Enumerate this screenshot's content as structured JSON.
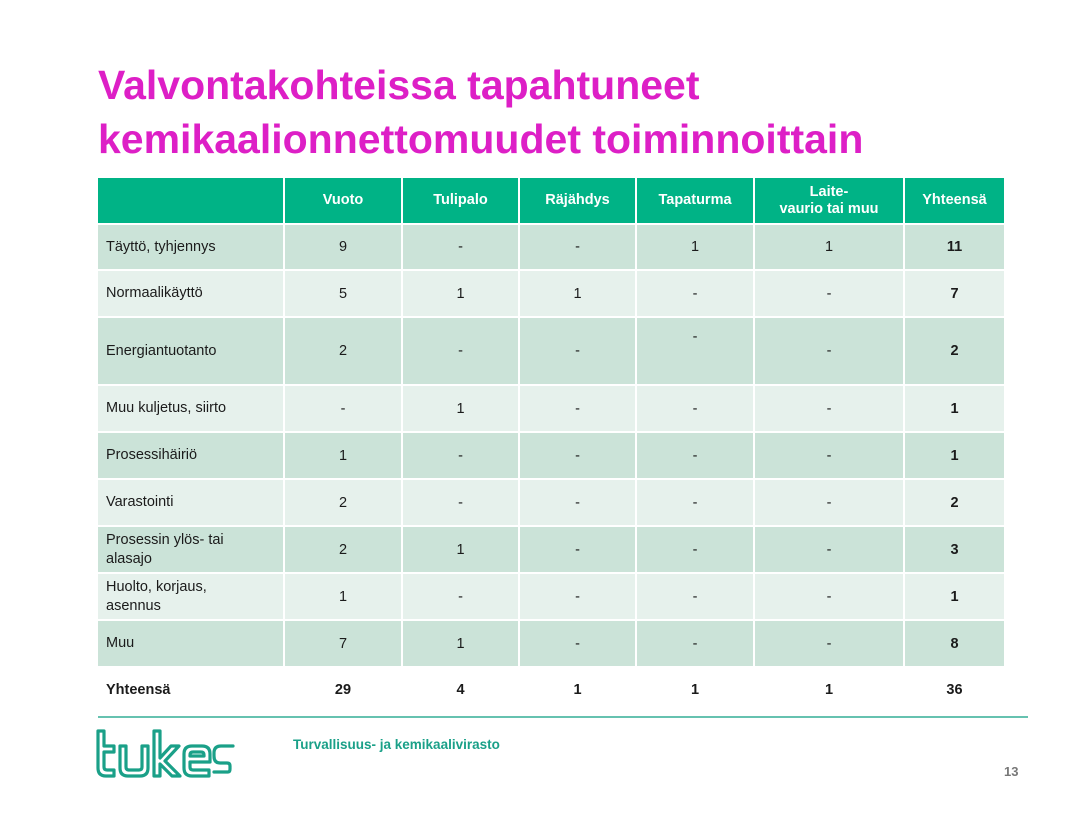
{
  "slide": {
    "title_line1": "Valvontakohteissa tapahtuneet",
    "title_line2": "kemikaalionnettomuudet toiminnoittain",
    "agency_name": "Turvallisuus- ja kemikaalivirasto",
    "page_number": "13",
    "logo_text": "tukes",
    "colors": {
      "title": "#dd1fc6",
      "header_bg": "#00b386",
      "row_dark": "#cbe3d8",
      "row_light": "#e6f1ec",
      "logo": "#1aa088"
    }
  },
  "table": {
    "headers": [
      "",
      "Vuoto",
      "Tulipalo",
      "Räjähdys",
      "Tapaturma",
      "Laite-",
      "Yhteensä"
    ],
    "header_laite_line2": "vaurio tai muu",
    "rows": [
      {
        "label": "Täyttö, tyhjennys",
        "label2": "",
        "cells": [
          "9",
          "-",
          "-",
          "1",
          "1",
          "11"
        ]
      },
      {
        "label": "Normaalikäyttö",
        "label2": "",
        "cells": [
          "5",
          "1",
          "1",
          "-",
          "-",
          "7"
        ]
      },
      {
        "label": "Energiantuotanto",
        "label2": "",
        "cells": [
          "2",
          "-",
          "-",
          "-",
          "-",
          "2"
        ]
      },
      {
        "label": "Muu kuljetus, siirto",
        "label2": "",
        "cells": [
          "-",
          "1",
          "-",
          "-",
          "-",
          "1"
        ]
      },
      {
        "label": "Prosessihäiriö",
        "label2": "",
        "cells": [
          "1",
          "-",
          "-",
          "-",
          "-",
          "1"
        ]
      },
      {
        "label": "Varastointi",
        "label2": "",
        "cells": [
          "2",
          "-",
          "-",
          "-",
          "-",
          "2"
        ]
      },
      {
        "label": "Prosessin ylös- tai",
        "label2": "alasajo",
        "cells": [
          "2",
          "1",
          "-",
          "-",
          "-",
          "3"
        ]
      },
      {
        "label": "Huolto, korjaus,",
        "label2": "asennus",
        "cells": [
          "1",
          "-",
          "-",
          "-",
          "-",
          "1"
        ]
      },
      {
        "label": "Muu",
        "label2": "",
        "cells": [
          "7",
          "1",
          "-",
          "-",
          "-",
          "8"
        ]
      },
      {
        "label": "Yhteensä",
        "label2": "",
        "cells": [
          "29",
          "4",
          "1",
          "1",
          "1",
          "36"
        ]
      }
    ]
  }
}
